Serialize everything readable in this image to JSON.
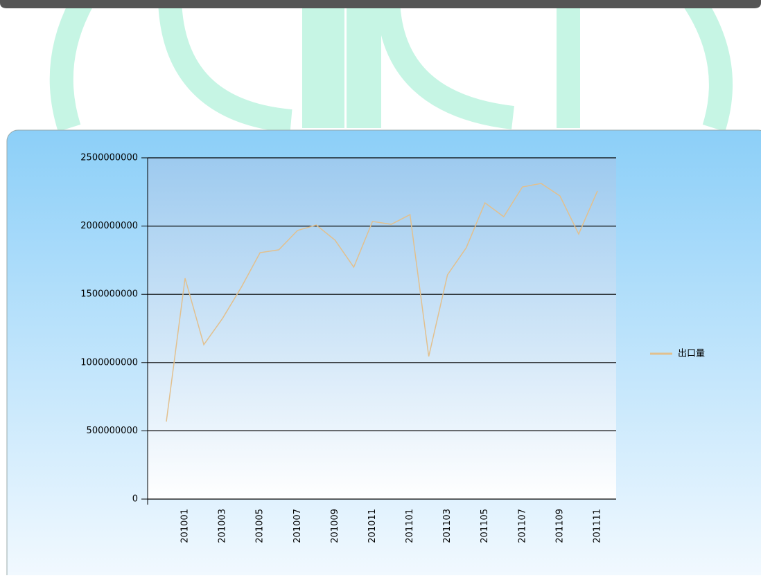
{
  "chart_data": {
    "type": "line",
    "categories": [
      null,
      "201001",
      null,
      "201003",
      null,
      "201005",
      null,
      "201007",
      null,
      "201009",
      null,
      "201011",
      null,
      "201101",
      null,
      "201103",
      null,
      "201105",
      null,
      "201107",
      null,
      "201109",
      null,
      "201111"
    ],
    "series": [
      {
        "name": "出口量",
        "color": "#e2c08e",
        "values": [
          568000000,
          1618000000,
          1131000000,
          1324000000,
          1552000000,
          1805000000,
          1826000000,
          1968000000,
          2008000000,
          1897000000,
          1699000000,
          2034000000,
          2013000000,
          2084000000,
          1045000000,
          1643000000,
          1841000000,
          2170000000,
          2069000000,
          2287000000,
          2312000000,
          2221000000,
          1942000000,
          2257000000
        ]
      }
    ],
    "ylim": [
      0,
      2500000000
    ],
    "yticks": [
      0,
      500000000,
      1000000000,
      1500000000,
      2000000000,
      2500000000
    ],
    "grid": true,
    "legend": "right"
  }
}
